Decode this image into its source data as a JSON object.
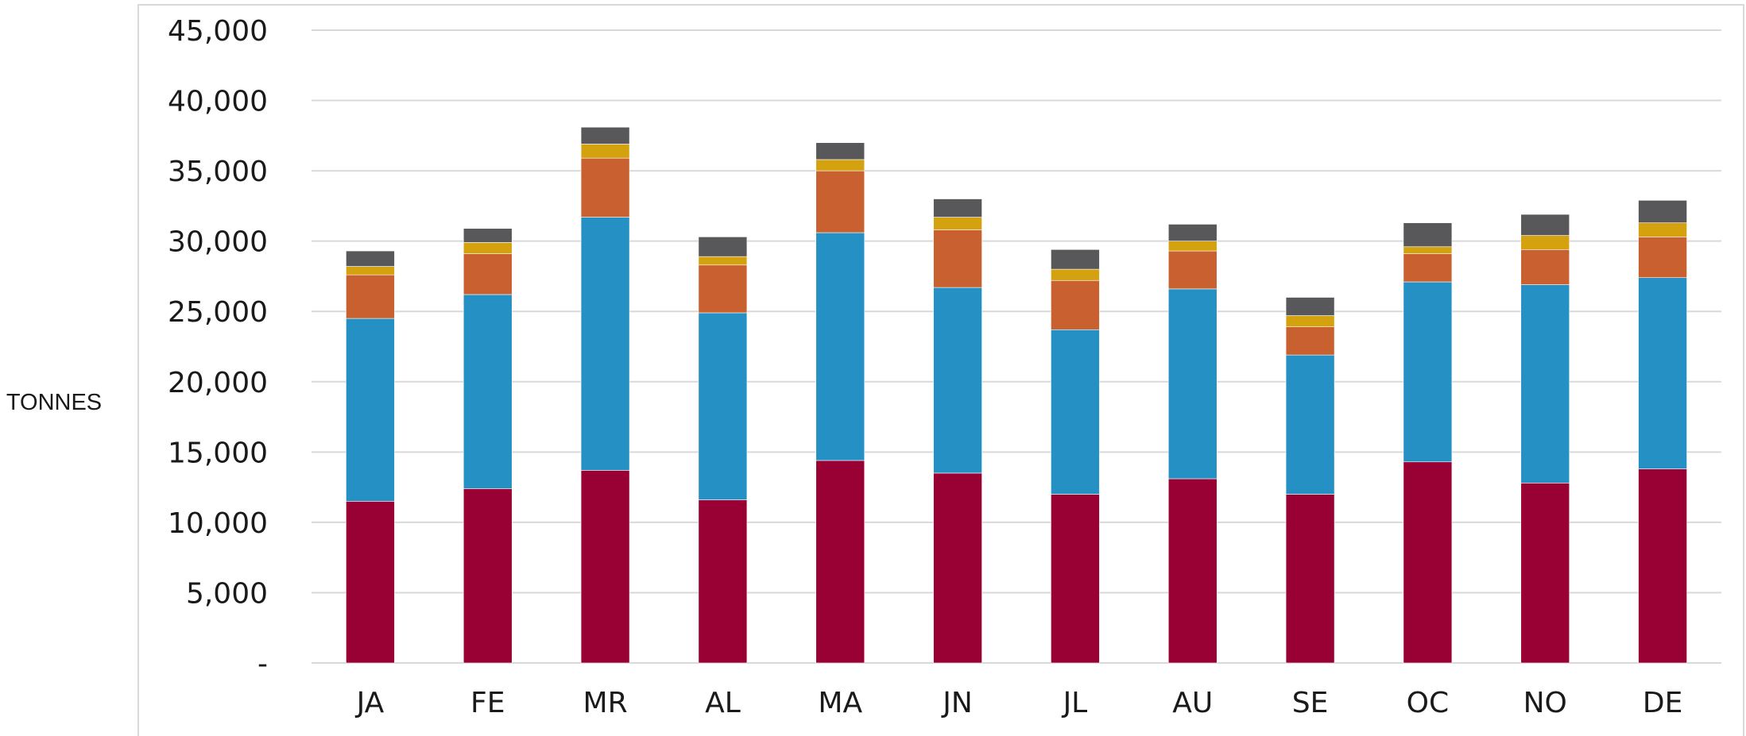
{
  "chart_data": {
    "type": "bar",
    "stacked": true,
    "title": "",
    "xlabel": "",
    "ylabel": "TONNES",
    "ylim": [
      0,
      45000
    ],
    "yticks": [
      0,
      5000,
      10000,
      15000,
      20000,
      25000,
      30000,
      35000,
      40000,
      45000
    ],
    "ytick_labels": [
      "-",
      "5,000",
      "10,000",
      "15,000",
      "20,000",
      "25,000",
      "30,000",
      "35,000",
      "40,000",
      "45,000"
    ],
    "grid": true,
    "legend": "none",
    "categories": [
      "JA",
      "FE",
      "MR",
      "AL",
      "MA",
      "JN",
      "JL",
      "AU",
      "SE",
      "OC",
      "NO",
      "DE"
    ],
    "series": [
      {
        "color": "#990033",
        "values": [
          11500,
          12400,
          13700,
          11600,
          14400,
          13500,
          12000,
          13100,
          12000,
          14300,
          12800,
          13800
        ]
      },
      {
        "color": "#2590c4",
        "values": [
          13000,
          13800,
          18000,
          13300,
          16200,
          13200,
          11700,
          13500,
          9900,
          12800,
          14100,
          13600
        ]
      },
      {
        "color": "#c8612f",
        "values": [
          3100,
          2900,
          4200,
          3400,
          4400,
          4100,
          3500,
          2700,
          2000,
          2000,
          2500,
          2900
        ]
      },
      {
        "color": "#d4a20e",
        "values": [
          600,
          800,
          1000,
          600,
          800,
          900,
          800,
          700,
          800,
          500,
          1000,
          1000
        ]
      },
      {
        "color": "#58585a",
        "values": [
          1100,
          1000,
          1200,
          1400,
          1200,
          1300,
          1400,
          1200,
          1300,
          1700,
          1500,
          1600
        ]
      }
    ]
  }
}
